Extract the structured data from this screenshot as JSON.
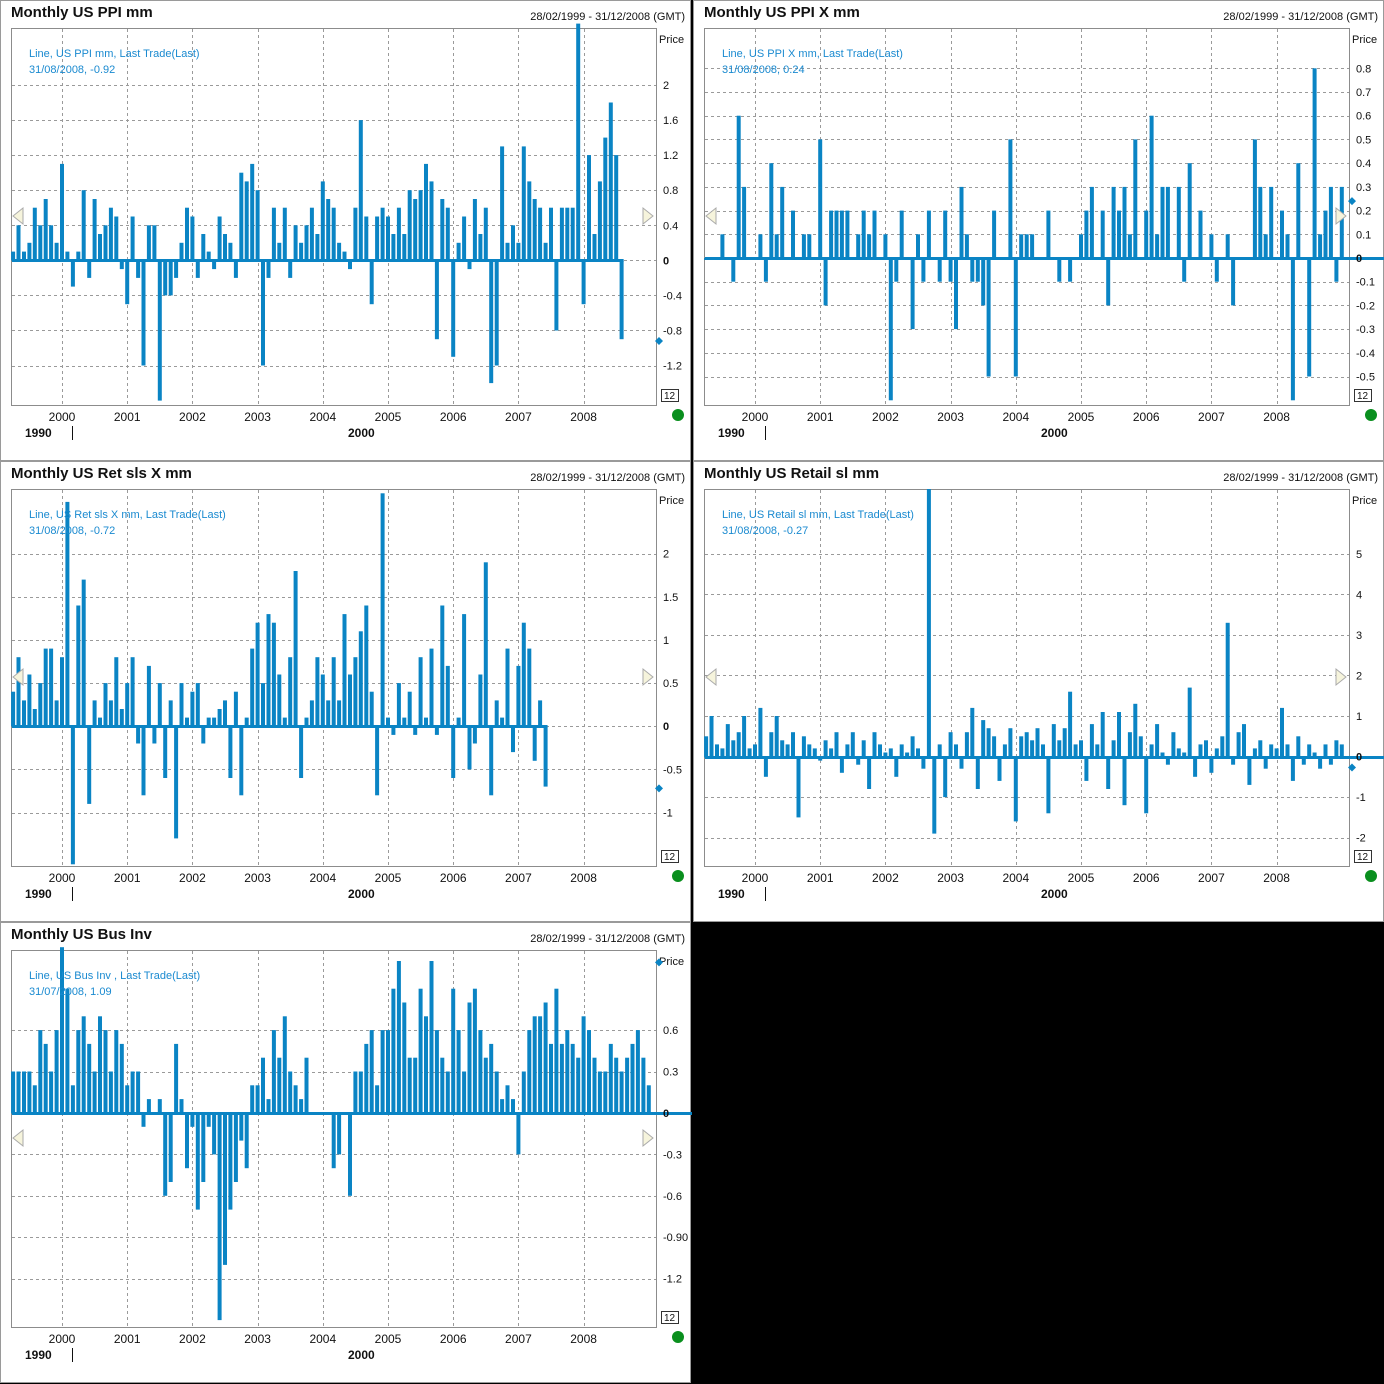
{
  "common": {
    "y_axis_label": "Price",
    "date_range": "28/02/1999 - 31/12/2008 (GMT)",
    "x_ticks": [
      "2000",
      "2001",
      "2002",
      "2003",
      "2004",
      "2005",
      "2006",
      "2007",
      "2008"
    ],
    "decade_labels": [
      "1990",
      "2000"
    ],
    "count_badge": "12",
    "colors": {
      "bar": "#0a84c4",
      "grid": "#9a9a9a",
      "legend_text": "#1a8ad0",
      "marker": "#0a84c4",
      "status": "#0a8f1e",
      "arrow_fill": "#f6f4dc",
      "arrow_stroke": "#aaaaaa"
    }
  },
  "chart_data": [
    {
      "type": "bar",
      "title": "Monthly US PPI mm",
      "legend": {
        "line1": "Line, US PPI mm, Last Trade(Last)",
        "line2": "31/08/2008, -0.92"
      },
      "ylabel": "Price",
      "ylim": [
        -1.65,
        2.65
      ],
      "yticks": [
        -1.2,
        -0.8,
        -0.4,
        0,
        0.4,
        0.8,
        1.2,
        1.6,
        2
      ],
      "ytick_labels": [
        "-1.2",
        "-0.8",
        "-0.4",
        "0",
        "0.4",
        "0.8",
        "1.2",
        "1.6",
        "2"
      ],
      "x_start": "1999-02",
      "values": [
        -0.4,
        0.2,
        0.1,
        0.4,
        0.1,
        0.2,
        0.6,
        0.4,
        0.7,
        0.4,
        0.2,
        1.1,
        0.1,
        -0.3,
        0.1,
        0.8,
        -0.2,
        0.7,
        0.3,
        0.4,
        0.6,
        0.5,
        -0.1,
        -0.5,
        0.5,
        -0.2,
        -1.2,
        0.4,
        0.4,
        -1.6,
        -0.4,
        -0.4,
        -0.2,
        0.2,
        0.6,
        0.5,
        -0.2,
        0.3,
        0.1,
        -0.1,
        0.5,
        0.3,
        0.2,
        -0.2,
        1.0,
        0.9,
        1.1,
        0.8,
        -1.2,
        -0.2,
        0.6,
        0.2,
        0.6,
        -0.2,
        0.4,
        0.2,
        0.4,
        0.6,
        0.3,
        0.9,
        0.7,
        0.6,
        0.2,
        0.1,
        -0.1,
        0.6,
        1.6,
        0.5,
        -0.5,
        0.5,
        0.6,
        0.5,
        0.3,
        0.6,
        0.3,
        0.8,
        0.7,
        0.8,
        1.1,
        0.9,
        -0.9,
        0.7,
        0.6,
        -1.1,
        0.2,
        0.5,
        -0.1,
        0.7,
        0.3,
        0.6,
        -1.4,
        -1.2,
        1.3,
        0.2,
        0.4,
        0.2,
        1.3,
        0.9,
        0.7,
        0.6,
        0.2,
        0.6,
        -0.8,
        0.6,
        0.6,
        0.6,
        2.7,
        -0.5,
        1.2,
        0.3,
        0.9,
        1.4,
        1.8,
        1.2,
        -0.9
      ],
      "last_value": -0.92
    },
    {
      "type": "bar",
      "title": "Monthly US PPI X mm",
      "legend": {
        "line1": "Line, US PPI X mm, Last Trade(Last)",
        "line2": "31/08/2008, 0.24"
      },
      "ylabel": "Price",
      "ylim": [
        -0.62,
        0.97
      ],
      "yticks": [
        -0.5,
        -0.4,
        -0.3,
        -0.2,
        -0.1,
        0,
        0.1,
        0.2,
        0.3,
        0.4,
        0.5,
        0.6,
        0.7,
        0.8
      ],
      "ytick_labels": [
        "-0.5",
        "-0.4",
        "-0.3",
        "-0.2",
        "-0.1",
        "0",
        "0.1",
        "0.2",
        "0.3",
        "0.4",
        "0.5",
        "0.6",
        "0.7",
        "0.8"
      ],
      "x_start": "1999-02",
      "values": [
        0.1,
        0.0,
        0.0,
        0.0,
        0.0,
        0.1,
        0.0,
        -0.1,
        0.6,
        0.3,
        0.0,
        0.0,
        0.1,
        -0.1,
        0.4,
        0.1,
        0.3,
        0.0,
        0.2,
        0.0,
        0.1,
        0.1,
        0.0,
        0.5,
        -0.2,
        0.2,
        0.2,
        0.2,
        0.2,
        0.0,
        0.1,
        0.2,
        0.1,
        0.2,
        0.0,
        0.1,
        -0.6,
        -0.1,
        0.2,
        0.0,
        -0.3,
        0.1,
        -0.1,
        0.2,
        0.0,
        -0.1,
        0.2,
        -0.1,
        -0.3,
        0.3,
        0.1,
        -0.1,
        -0.1,
        -0.2,
        -0.5,
        0.2,
        0.0,
        0.0,
        0.5,
        -0.5,
        0.1,
        0.1,
        0.1,
        0.0,
        0.0,
        0.2,
        0.0,
        -0.1,
        0.0,
        -0.1,
        0.0,
        0.1,
        0.2,
        0.3,
        0.0,
        0.2,
        -0.2,
        0.3,
        0.2,
        0.3,
        0.1,
        0.5,
        0.0,
        0.2,
        0.6,
        0.1,
        0.3,
        0.3,
        0.0,
        0.3,
        -0.1,
        0.4,
        0.0,
        0.2,
        0.0,
        0.1,
        -0.1,
        0.0,
        0.1,
        -0.2,
        0.0,
        0.0,
        0.0,
        0.5,
        0.3,
        0.1,
        0.3,
        0.0,
        0.2,
        0.1,
        -0.6,
        0.4,
        0.0,
        -0.5,
        0.8,
        0.1,
        0.2,
        0.3,
        -0.1,
        0.3,
        0.2,
        0.2,
        0.2,
        0.2,
        0.1,
        0.1,
        0.2,
        0.3,
        0.1,
        0.5,
        0.1,
        0.4,
        0.5,
        0.3,
        0.1,
        0.6,
        0.2
      ],
      "last_value": 0.24
    },
    {
      "type": "bar",
      "title": "Monthly US Ret sls X mm",
      "legend": {
        "line1": "Line, US Ret sls X mm, Last Trade(Last)",
        "line2": "31/08/2008, -0.72"
      },
      "ylabel": "Price",
      "ylim": [
        -1.62,
        2.75
      ],
      "yticks": [
        -1,
        -0.5,
        0,
        0.5,
        1,
        1.5,
        2
      ],
      "ytick_labels": [
        "-1",
        "-0.5",
        "0",
        "0.5",
        "1",
        "1.5",
        "2"
      ],
      "x_start": "1999-02",
      "values": [
        1.1,
        0.4,
        0.4,
        0.8,
        0.3,
        0.6,
        0.2,
        0.5,
        0.9,
        0.9,
        0.3,
        0.8,
        2.6,
        -1.6,
        1.4,
        1.7,
        -0.9,
        0.3,
        0.1,
        0.5,
        0.3,
        0.8,
        0.2,
        0.5,
        0.8,
        -0.2,
        -0.8,
        0.7,
        -0.2,
        0.5,
        -0.6,
        0.3,
        -1.3,
        0.5,
        0.1,
        0.4,
        0.5,
        -0.2,
        0.1,
        0.1,
        0.2,
        0.3,
        -0.6,
        0.4,
        -0.8,
        0.1,
        0.9,
        1.2,
        0.5,
        1.3,
        1.2,
        0.6,
        0.1,
        0.8,
        1.8,
        -0.6,
        0.1,
        0.3,
        0.8,
        0.6,
        0.3,
        0.8,
        0.3,
        1.3,
        0.6,
        0.8,
        1.1,
        1.4,
        0.4,
        -0.8,
        2.7,
        0.1,
        -0.1,
        0.5,
        0.1,
        0.4,
        -0.1,
        0.8,
        0.1,
        0.9,
        -0.1,
        1.4,
        0.7,
        -0.6,
        0.1,
        1.3,
        -0.5,
        -0.2,
        0.6,
        1.9,
        -0.8,
        0.3,
        0.1,
        0.9,
        -0.3,
        0.7,
        1.2,
        0.9,
        -0.4,
        0.3,
        -0.7
      ],
      "last_value": -0.72
    },
    {
      "type": "bar",
      "title": "Monthly US Retail sl mm",
      "legend": {
        "line1": "Line, US Retail sl mm, Last Trade(Last)",
        "line2": "31/08/2008, -0.27"
      },
      "ylabel": "Price",
      "ylim": [
        -2.7,
        6.6
      ],
      "yticks": [
        -2,
        -1,
        0,
        1,
        2,
        3,
        4,
        5
      ],
      "ytick_labels": [
        "-2",
        "-1",
        "0",
        "1",
        "2",
        "3",
        "4",
        "5"
      ],
      "x_start": "1999-02",
      "values": [
        1.0,
        0.4,
        0.5,
        1.0,
        0.3,
        0.2,
        0.8,
        0.4,
        0.6,
        1.0,
        0.2,
        0.3,
        1.2,
        -0.5,
        0.6,
        1.0,
        0.4,
        0.3,
        0.6,
        -1.5,
        0.5,
        0.3,
        0.2,
        -0.1,
        0.4,
        0.2,
        0.6,
        -0.4,
        0.3,
        0.6,
        -0.2,
        0.4,
        -0.8,
        0.6,
        0.3,
        0.1,
        0.2,
        -0.5,
        0.3,
        0.1,
        0.5,
        0.2,
        -0.3,
        6.6,
        -1.9,
        0.3,
        -1.0,
        0.6,
        0.3,
        -0.3,
        0.6,
        1.2,
        -0.8,
        0.9,
        0.7,
        0.5,
        -0.6,
        0.3,
        0.7,
        -1.6,
        0.5,
        0.6,
        0.4,
        0.7,
        0.3,
        -1.4,
        0.8,
        0.4,
        0.7,
        1.6,
        0.3,
        0.4,
        -0.6,
        0.8,
        0.3,
        1.1,
        -0.8,
        0.4,
        1.1,
        -1.2,
        0.6,
        1.3,
        0.5,
        -1.4,
        0.3,
        0.8,
        0.1,
        -0.2,
        0.6,
        0.2,
        0.1,
        1.7,
        -0.5,
        0.3,
        0.4,
        -0.4,
        0.2,
        0.5,
        3.3,
        -0.2,
        0.6,
        0.8,
        -0.7,
        0.2,
        0.4,
        -0.3,
        0.3,
        0.2,
        1.2,
        0.3,
        -0.6,
        0.5,
        -0.2,
        0.3,
        0.1,
        -0.3,
        0.3,
        -0.2,
        0.4,
        0.3,
        1.4,
        0.2,
        -0.8,
        0.5,
        0.4,
        0.1,
        -1.2,
        0.3,
        0.6,
        -0.3,
        0.3,
        -0.2,
        0.2,
        1.0,
        -0.5,
        -1.0,
        0.3,
        -0.3,
        0.6,
        -0.4,
        0.6,
        -0.3,
        0.1,
        -0.3
      ],
      "last_value": -0.27
    },
    {
      "type": "bar",
      "title": "Monthly US Bus Inv",
      "legend": {
        "line1": "Line, US Bus Inv , Last Trade(Last)",
        "line2": "31/07/2008, 1.09"
      },
      "ylabel": "Price",
      "ylim": [
        -1.55,
        1.18
      ],
      "yticks": [
        -1.2,
        -0.9,
        -0.6,
        -0.3,
        0,
        0.3,
        0.6
      ],
      "ytick_labels": [
        "-1.2",
        "-0.90",
        "-0.6",
        "-0.3",
        "0",
        "0.3",
        "0.6"
      ],
      "x_start": "1999-02",
      "values": [
        0.5,
        0.6,
        0.3,
        0.3,
        0.3,
        0.3,
        0.2,
        0.6,
        0.5,
        0.3,
        0.6,
        1.2,
        0.9,
        0.2,
        0.6,
        0.7,
        0.5,
        0.3,
        0.7,
        0.6,
        0.3,
        0.6,
        0.5,
        0.2,
        0.3,
        0.3,
        -0.1,
        0.1,
        0.0,
        0.1,
        -0.6,
        -0.5,
        0.5,
        0.1,
        -0.4,
        -0.1,
        -0.7,
        -0.5,
        -0.1,
        -0.3,
        -1.5,
        -1.1,
        -0.7,
        -0.5,
        -0.2,
        -0.4,
        0.2,
        0.2,
        0.4,
        0.1,
        0.6,
        0.4,
        0.7,
        0.3,
        0.2,
        0.1,
        0.4,
        0.0,
        0.0,
        0.0,
        0.0,
        -0.4,
        -0.3,
        0.0,
        -0.6,
        0.3,
        0.3,
        0.5,
        0.6,
        0.2,
        0.6,
        0.6,
        0.9,
        1.1,
        0.8,
        0.4,
        0.4,
        0.9,
        0.7,
        1.1,
        0.6,
        0.4,
        0.3,
        0.9,
        0.6,
        0.3,
        0.8,
        0.9,
        0.6,
        0.4,
        0.5,
        0.3,
        0.1,
        0.2,
        0.1,
        -0.3,
        0.3,
        0.6,
        0.7,
        0.7,
        0.8,
        0.5,
        0.9,
        0.5,
        0.6,
        0.5,
        0.4,
        0.7,
        0.6,
        0.4,
        0.3,
        0.3,
        0.5,
        0.4,
        0.3,
        0.4,
        0.5,
        0.6,
        0.4,
        0.2,
        0.5,
        0.3,
        0.1,
        0.2,
        0.3,
        0.5,
        0.5,
        0.6,
        0.5,
        0.8,
        0.4,
        0.3,
        0.2,
        0.4,
        0.5,
        0.8,
        0.5,
        0.6,
        0.6,
        0.3,
        0.7,
        0.2,
        0.5,
        1.1
      ],
      "last_value": 1.09
    }
  ]
}
